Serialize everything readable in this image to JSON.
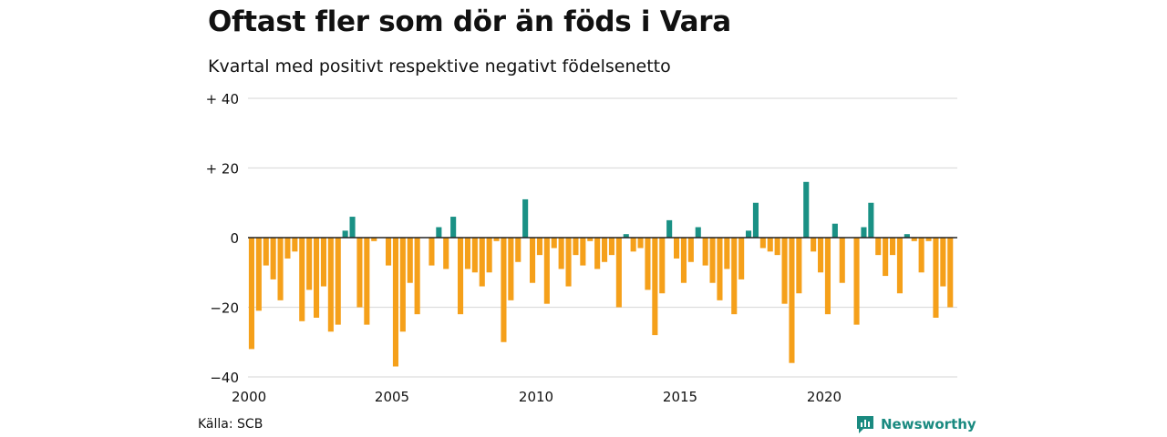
{
  "title": "Oftast fler som dör än föds i Vara",
  "subtitle": "Kvartal med positivt respektive negativt födelsenetto",
  "source": "Källa: SCB",
  "brand": "Newsworthy",
  "colors": {
    "positive": "#1a9185",
    "negative": "#f5a01a",
    "grid": "#dddddd",
    "zero": "#222222",
    "brand": "#1a8a80"
  },
  "chart_data": {
    "type": "bar",
    "title": "Oftast fler som dör än föds i Vara",
    "subtitle": "Kvartal med positivt respektive negativt födelsenetto",
    "xlabel": "",
    "ylabel": "",
    "xlim": [
      2000,
      2024.75
    ],
    "ylim": [
      -40,
      40
    ],
    "x_ticks": [
      2000,
      2005,
      2010,
      2015,
      2020
    ],
    "y_ticks": [
      {
        "value": 40,
        "label": "+ 40"
      },
      {
        "value": 20,
        "label": "+ 20"
      },
      {
        "value": 0,
        "label": "0"
      },
      {
        "value": -20,
        "label": "−20"
      },
      {
        "value": -40,
        "label": "−40"
      }
    ],
    "grid": true,
    "legend": "none",
    "start": {
      "year": 2000,
      "quarter": 1
    },
    "values": [
      -32,
      -21,
      -8,
      -12,
      -18,
      -6,
      -4,
      -24,
      -15,
      -23,
      -14,
      -27,
      -25,
      2,
      6,
      -20,
      -25,
      -1,
      0,
      -8,
      -37,
      -27,
      -13,
      -22,
      0,
      -8,
      3,
      -9,
      6,
      -22,
      -9,
      -10,
      -14,
      -10,
      -1,
      -30,
      -18,
      -7,
      11,
      -13,
      -5,
      -19,
      -3,
      -9,
      -14,
      -5,
      -8,
      -1,
      -9,
      -7,
      -5,
      -20,
      1,
      -4,
      -3,
      -15,
      -28,
      -16,
      5,
      -6,
      -13,
      -7,
      3,
      -8,
      -13,
      -18,
      -9,
      -22,
      -12,
      2,
      10,
      -3,
      -4,
      -5,
      -19,
      -36,
      -16,
      16,
      -4,
      -10,
      -22,
      4,
      -13,
      0,
      -25,
      3,
      10,
      -5,
      -11,
      -5,
      -16,
      1,
      -1,
      -10,
      -1,
      -23,
      -14,
      -20
    ]
  }
}
